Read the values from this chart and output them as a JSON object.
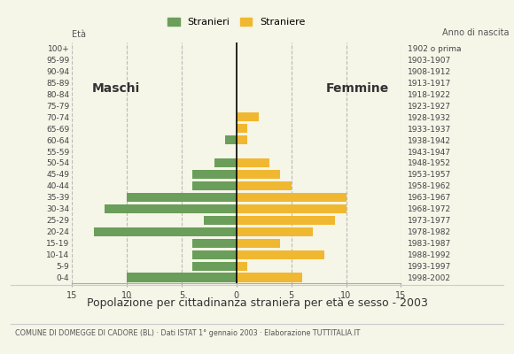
{
  "age_groups": [
    "0-4",
    "5-9",
    "10-14",
    "15-19",
    "20-24",
    "25-29",
    "30-34",
    "35-39",
    "40-44",
    "45-49",
    "50-54",
    "55-59",
    "60-64",
    "65-69",
    "70-74",
    "75-79",
    "80-84",
    "85-89",
    "90-94",
    "95-99",
    "100+"
  ],
  "birth_years": [
    "1998-2002",
    "1993-1997",
    "1988-1992",
    "1983-1987",
    "1978-1982",
    "1973-1977",
    "1968-1972",
    "1963-1967",
    "1958-1962",
    "1953-1957",
    "1948-1952",
    "1943-1947",
    "1938-1942",
    "1933-1937",
    "1928-1932",
    "1923-1927",
    "1918-1922",
    "1913-1917",
    "1908-1912",
    "1903-1907",
    "1902 o prima"
  ],
  "males": [
    10,
    4,
    4,
    4,
    13,
    3,
    12,
    10,
    4,
    4,
    2,
    0,
    1,
    0,
    0,
    0,
    0,
    0,
    0,
    0,
    0
  ],
  "females": [
    6,
    1,
    8,
    4,
    7,
    9,
    10,
    10,
    5,
    4,
    3,
    0,
    1,
    1,
    2,
    0,
    0,
    0,
    0,
    0,
    0
  ],
  "male_color": "#6a9e5a",
  "female_color": "#f0b830",
  "background_color": "#f5f5e8",
  "grid_color": "#bbbbbb",
  "xlim": 15,
  "title": "Popolazione per cittadinanza straniera per età e sesso - 2003",
  "subtitle": "COMUNE DI DOMEGGE DI CADORE (BL) · Dati ISTAT 1° gennaio 2003 · Elaborazione TUTTITALIA.IT",
  "legend_male": "Stranieri",
  "legend_female": "Straniere",
  "ylabel_left": "Età",
  "ylabel_right": "Anno di nascita",
  "label_maschi": "Maschi",
  "label_femmine": "Femmine"
}
